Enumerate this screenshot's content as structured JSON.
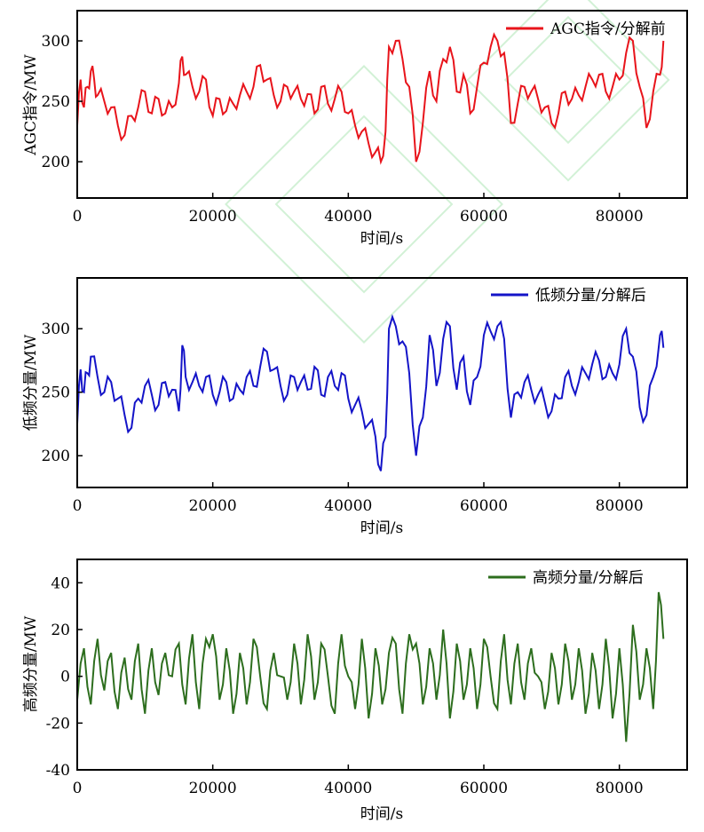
{
  "chart_data": [
    {
      "type": "line",
      "xlabel": "时间/s",
      "ylabel": "AGC指令/MW",
      "xlim": [
        0,
        90000
      ],
      "ylim": [
        170,
        325
      ],
      "xticks": [
        0,
        20000,
        40000,
        60000,
        80000
      ],
      "xtick_labels": [
        "0",
        "20000",
        "40000",
        "60000",
        "80000"
      ],
      "yticks": [
        200,
        250,
        300
      ],
      "ytick_labels": [
        "200",
        "250",
        "300"
      ],
      "legend_position": "top-right",
      "series": [
        {
          "name": "AGC指令/分解前",
          "color": "#e8141b",
          "x": [
            0,
            500,
            1000,
            1500,
            2000,
            2500,
            3000,
            4000,
            5000,
            6000,
            7000,
            8000,
            9000,
            10000,
            11000,
            12000,
            13000,
            14000,
            15000,
            15500,
            16000,
            17000,
            18000,
            19000,
            20000,
            21000,
            22000,
            23000,
            24000,
            25000,
            26000,
            27000,
            28000,
            29000,
            30000,
            31000,
            32000,
            33000,
            34000,
            35000,
            36000,
            37000,
            38000,
            39000,
            40000,
            41000,
            42000,
            43000,
            44000,
            44800,
            45500,
            46000,
            47000,
            48000,
            49000,
            50000,
            51000,
            52000,
            53000,
            54000,
            55000,
            56000,
            57000,
            58000,
            59000,
            60000,
            61000,
            62000,
            63000,
            64000,
            65000,
            66000,
            67000,
            68000,
            69000,
            70000,
            71000,
            72000,
            73000,
            74000,
            75000,
            76000,
            77000,
            78000,
            79000,
            80000,
            81000,
            82000,
            83000,
            84000,
            85000,
            86000,
            86500
          ],
          "values": [
            230,
            268,
            245,
            262,
            275,
            268,
            255,
            250,
            245,
            230,
            222,
            238,
            245,
            258,
            240,
            252,
            240,
            245,
            265,
            287,
            272,
            262,
            258,
            268,
            238,
            252,
            242,
            248,
            255,
            258,
            262,
            280,
            268,
            255,
            250,
            262,
            258,
            252,
            256,
            240,
            262,
            248,
            252,
            258,
            240,
            230,
            225,
            215,
            208,
            200,
            225,
            295,
            300,
            285,
            262,
            200,
            232,
            275,
            250,
            285,
            295,
            258,
            272,
            240,
            262,
            282,
            295,
            300,
            290,
            232,
            248,
            262,
            258,
            252,
            245,
            232,
            240,
            258,
            252,
            255,
            262,
            268,
            272,
            258,
            262,
            268,
            290,
            300,
            262,
            228,
            258,
            272,
            300
          ]
        }
      ]
    },
    {
      "type": "line",
      "xlabel": "时间/s",
      "ylabel": "低频分量/MW",
      "xlim": [
        0,
        90000
      ],
      "ylim": [
        175,
        340
      ],
      "xticks": [
        0,
        20000,
        40000,
        60000,
        80000
      ],
      "xtick_labels": [
        "0",
        "20000",
        "40000",
        "60000",
        "80000"
      ],
      "yticks": [
        200,
        250,
        300
      ],
      "ytick_labels": [
        "200",
        "250",
        "300"
      ],
      "legend_position": "top-right",
      "series": [
        {
          "name": "低频分量/分解后",
          "color": "#1414c8",
          "x": [
            0,
            500,
            1000,
            1500,
            2000,
            3000,
            4000,
            5000,
            6000,
            7000,
            8000,
            9000,
            10000,
            11000,
            12000,
            13000,
            14000,
            15000,
            15500,
            16000,
            17000,
            18000,
            19000,
            20000,
            21000,
            22000,
            23000,
            24000,
            25000,
            26000,
            27000,
            28000,
            29000,
            30000,
            31000,
            32000,
            33000,
            34000,
            35000,
            36000,
            37000,
            38000,
            39000,
            40000,
            41000,
            42000,
            43000,
            44000,
            44800,
            45500,
            46000,
            47000,
            48000,
            49000,
            50000,
            51000,
            52000,
            53000,
            54000,
            55000,
            56000,
            57000,
            58000,
            59000,
            60000,
            61000,
            62000,
            63000,
            64000,
            65000,
            66000,
            67000,
            68000,
            69000,
            70000,
            71000,
            72000,
            73000,
            74000,
            75000,
            76000,
            77000,
            78000,
            79000,
            80000,
            81000,
            82000,
            83000,
            84000,
            85000,
            86000,
            86500
          ],
          "values": [
            225,
            268,
            250,
            265,
            278,
            262,
            250,
            258,
            245,
            232,
            222,
            245,
            255,
            248,
            240,
            258,
            252,
            235,
            287,
            262,
            258,
            255,
            262,
            248,
            250,
            258,
            245,
            252,
            262,
            255,
            270,
            282,
            268,
            255,
            248,
            262,
            258,
            252,
            270,
            248,
            262,
            255,
            265,
            245,
            240,
            235,
            225,
            215,
            188,
            215,
            300,
            302,
            290,
            265,
            200,
            230,
            295,
            255,
            292,
            302,
            252,
            278,
            240,
            262,
            295,
            298,
            302,
            292,
            230,
            250,
            258,
            252,
            248,
            242,
            235,
            245,
            262,
            255,
            258,
            265,
            272,
            275,
            262,
            265,
            272,
            300,
            278,
            238,
            232,
            262,
            295,
            285
          ]
        }
      ]
    },
    {
      "type": "line",
      "xlabel": "时间/s",
      "ylabel": "高频分量/MW",
      "xlim": [
        0,
        90000
      ],
      "ylim": [
        -40,
        50
      ],
      "xticks": [
        0,
        20000,
        40000,
        60000,
        80000
      ],
      "xtick_labels": [
        "0",
        "20000",
        "40000",
        "60000",
        "80000"
      ],
      "yticks": [
        -40,
        -20,
        0,
        20,
        40
      ],
      "ytick_labels": [
        "-40",
        "-20",
        "0",
        "20",
        "40"
      ],
      "legend_position": "top-right",
      "series": [
        {
          "name": "高频分量/分解后",
          "color": "#2d6e1e",
          "x": [
            0,
            1000,
            2000,
            3000,
            4000,
            5000,
            6000,
            7000,
            8000,
            9000,
            10000,
            11000,
            12000,
            13000,
            14000,
            15000,
            16000,
            17000,
            18000,
            19000,
            20000,
            21000,
            22000,
            23000,
            24000,
            25000,
            26000,
            27000,
            28000,
            29000,
            30000,
            31000,
            32000,
            33000,
            34000,
            35000,
            36000,
            37000,
            38000,
            39000,
            40000,
            41000,
            42000,
            43000,
            44000,
            45000,
            46000,
            47000,
            48000,
            49000,
            50000,
            51000,
            52000,
            53000,
            54000,
            55000,
            56000,
            57000,
            58000,
            59000,
            60000,
            61000,
            62000,
            63000,
            64000,
            65000,
            66000,
            67000,
            68000,
            69000,
            70000,
            71000,
            72000,
            73000,
            74000,
            75000,
            76000,
            77000,
            78000,
            79000,
            80000,
            81000,
            82000,
            83000,
            84000,
            85000,
            85800,
            86500
          ],
          "values": [
            -10,
            12,
            -12,
            16,
            -6,
            10,
            -14,
            8,
            -10,
            14,
            -16,
            12,
            -8,
            10,
            0,
            14,
            -12,
            18,
            -14,
            16,
            18,
            -10,
            12,
            -16,
            10,
            -12,
            16,
            0,
            -14,
            10,
            0,
            -10,
            14,
            -12,
            18,
            -10,
            14,
            0,
            -16,
            18,
            0,
            -14,
            16,
            -18,
            12,
            -12,
            10,
            14,
            -16,
            18,
            14,
            -12,
            12,
            -10,
            20,
            -18,
            14,
            -10,
            12,
            -14,
            16,
            0,
            -14,
            18,
            -12,
            14,
            -10,
            12,
            0,
            -14,
            10,
            -12,
            14,
            -10,
            12,
            -16,
            10,
            -14,
            16,
            -18,
            12,
            -28,
            22,
            -10,
            12,
            -14,
            36,
            16
          ]
        }
      ]
    }
  ]
}
